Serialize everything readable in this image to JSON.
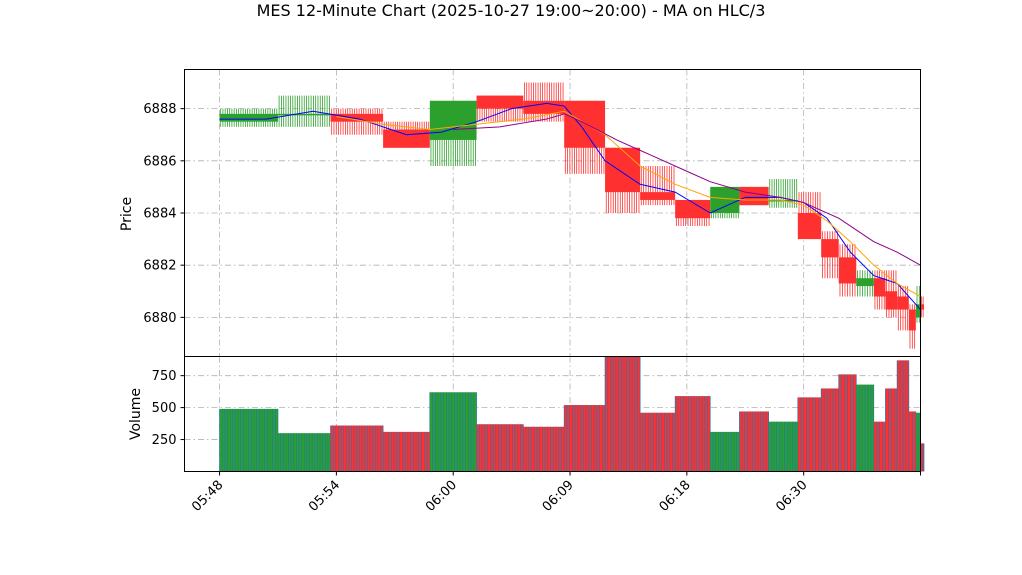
{
  "chart_data": {
    "type": "bar",
    "title": "MES 12-Minute Chart (2025-10-27 19:00~20:00) - MA on HLC/3",
    "price_panel": {
      "ylabel": "Price",
      "ylim": [
        6878.5,
        6889.5
      ],
      "yticks": [
        6880,
        6882,
        6884,
        6886,
        6888
      ],
      "ytick_labels": [
        "6880",
        "6882",
        "6884",
        "6886",
        "6888"
      ],
      "grid": true
    },
    "volume_panel": {
      "ylabel": "Volume",
      "ylim": [
        0,
        900
      ],
      "yticks": [
        250,
        500,
        750
      ],
      "ytick_labels": [
        "250",
        "500",
        "750"
      ],
      "grid": true
    },
    "xlim": [
      -3,
      60
    ],
    "xticks": [
      0,
      10,
      20,
      30,
      40,
      50,
      60
    ],
    "xtick_labels": [
      "05:48",
      "05:54",
      "06:00",
      "06:09",
      "06:18",
      "06:30",
      ""
    ],
    "colors": {
      "up": "#2ca02c",
      "down": "#ff3030",
      "ma_fast": "#0000ff",
      "ma_mid": "#ffa500",
      "ma_slow": "#8b008b",
      "volume_edge": "#1f77b4"
    },
    "bars": [
      {
        "start": 0,
        "end": 5,
        "open": 6887.5,
        "high": 6888,
        "low": 6887.3,
        "close": 6887.8,
        "volume": 490
      },
      {
        "start": 5,
        "end": 9.5,
        "open": 6887.8,
        "high": 6888.5,
        "low": 6887.3,
        "close": 6887.8,
        "volume": 300
      },
      {
        "start": 9.5,
        "end": 14,
        "open": 6887.8,
        "high": 6888,
        "low": 6887,
        "close": 6887.5,
        "volume": 360
      },
      {
        "start": 14,
        "end": 18,
        "open": 6887.2,
        "high": 6887.5,
        "low": 6886.5,
        "close": 6886.5,
        "volume": 310
      },
      {
        "start": 18,
        "end": 22,
        "open": 6886.8,
        "high": 6888.3,
        "low": 6885.8,
        "close": 6888.3,
        "volume": 620
      },
      {
        "start": 22,
        "end": 26,
        "open": 6888.5,
        "high": 6888.5,
        "low": 6887.5,
        "close": 6888,
        "volume": 370
      },
      {
        "start": 26,
        "end": 29.5,
        "open": 6888.3,
        "high": 6889,
        "low": 6887.5,
        "close": 6887.8,
        "volume": 350
      },
      {
        "start": 29.5,
        "end": 33,
        "open": 6888.3,
        "high": 6888.3,
        "low": 6885.5,
        "close": 6886.5,
        "volume": 520
      },
      {
        "start": 33,
        "end": 36,
        "open": 6886.5,
        "high": 6886.5,
        "low": 6884,
        "close": 6884.8,
        "volume": 900
      },
      {
        "start": 36,
        "end": 39,
        "open": 6884.8,
        "high": 6885.8,
        "low": 6884.3,
        "close": 6884.5,
        "volume": 460
      },
      {
        "start": 39,
        "end": 42,
        "open": 6884.5,
        "high": 6884.5,
        "low": 6883.5,
        "close": 6883.8,
        "volume": 590
      },
      {
        "start": 42,
        "end": 44.5,
        "open": 6884,
        "high": 6885,
        "low": 6883.8,
        "close": 6885,
        "volume": 310
      },
      {
        "start": 44.5,
        "end": 47,
        "open": 6885,
        "high": 6885,
        "low": 6884.3,
        "close": 6884.3,
        "volume": 470
      },
      {
        "start": 47,
        "end": 49.5,
        "open": 6884.5,
        "high": 6885.3,
        "low": 6884.2,
        "close": 6884.5,
        "volume": 390
      },
      {
        "start": 49.5,
        "end": 51.5,
        "open": 6884,
        "high": 6884.8,
        "low": 6883,
        "close": 6883,
        "volume": 580
      },
      {
        "start": 51.5,
        "end": 53,
        "open": 6883,
        "high": 6883.3,
        "low": 6881.5,
        "close": 6882.3,
        "volume": 650
      },
      {
        "start": 53,
        "end": 54.5,
        "open": 6882.3,
        "high": 6882.8,
        "low": 6880.8,
        "close": 6881.3,
        "volume": 760
      },
      {
        "start": 54.5,
        "end": 56,
        "open": 6881.2,
        "high": 6881.8,
        "low": 6880.8,
        "close": 6881.5,
        "volume": 680
      },
      {
        "start": 56,
        "end": 57,
        "open": 6881.5,
        "high": 6881.8,
        "low": 6880.3,
        "close": 6880.8,
        "volume": 390
      },
      {
        "start": 57,
        "end": 58,
        "open": 6881,
        "high": 6881.8,
        "low": 6880,
        "close": 6880.3,
        "volume": 650
      },
      {
        "start": 58,
        "end": 59,
        "open": 6880.8,
        "high": 6881.2,
        "low": 6879.5,
        "close": 6880.3,
        "volume": 870
      },
      {
        "start": 59,
        "end": 59.6,
        "open": 6880.3,
        "high": 6880.5,
        "low": 6878.8,
        "close": 6879.5,
        "volume": 470
      },
      {
        "start": 59.6,
        "end": 60,
        "open": 6880,
        "high": 6881.2,
        "low": 6879.8,
        "close": 6880.5,
        "volume": 460
      },
      {
        "start": 60,
        "end": 60.3,
        "open": 6880.5,
        "high": 6880.8,
        "low": 6880,
        "close": 6880.3,
        "volume": 220
      }
    ],
    "ma_series": [
      {
        "key": "ma_fast",
        "x": [
          0,
          4,
          8,
          12,
          16,
          19,
          22,
          25,
          28,
          29.5,
          31,
          33,
          36,
          39,
          42,
          45,
          48,
          50,
          52,
          54,
          56,
          58,
          60
        ],
        "y": [
          6887.6,
          6887.6,
          6887.9,
          6887.6,
          6887.0,
          6887.1,
          6887.5,
          6888.0,
          6888.2,
          6888.1,
          6887.3,
          6886.0,
          6885.1,
          6884.8,
          6884.0,
          6884.6,
          6884.6,
          6884.4,
          6883.8,
          6882.5,
          6881.6,
          6881.3,
          6880.3
        ]
      },
      {
        "key": "ma_mid",
        "x": [
          10,
          14,
          18,
          22,
          26,
          29.5,
          33,
          36,
          39,
          42,
          45,
          48,
          50,
          52,
          54,
          56,
          58,
          60
        ],
        "y": [
          6887.7,
          6887.4,
          6887.2,
          6887.4,
          6887.6,
          6887.9,
          6887.0,
          6885.8,
          6885.1,
          6884.6,
          6884.5,
          6884.5,
          6884.3,
          6883.7,
          6882.9,
          6882.0,
          6881.3,
          6880.8
        ]
      },
      {
        "key": "ma_slow",
        "x": [
          20,
          24,
          28,
          29.5,
          31,
          34,
          37,
          40,
          42,
          45,
          48,
          50,
          53,
          56,
          58,
          60
        ],
        "y": [
          6887.2,
          6887.3,
          6887.6,
          6887.8,
          6887.5,
          6886.8,
          6886.2,
          6885.6,
          6885.2,
          6884.8,
          6884.6,
          6884.4,
          6883.8,
          6882.9,
          6882.5,
          6882.0
        ]
      }
    ]
  }
}
